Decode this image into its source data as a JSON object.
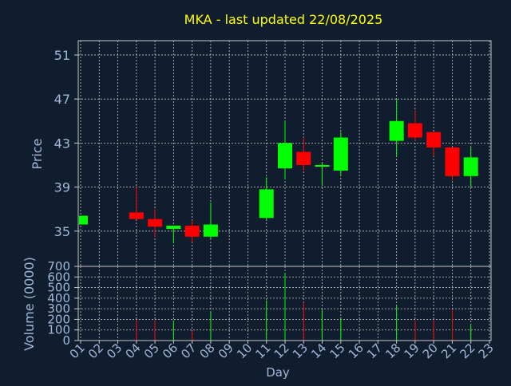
{
  "chart_data": {
    "type": "candlestick",
    "title": "MKA - last updated 22/08/2025",
    "colors": {
      "background": "#101d2e",
      "title": "#ffff00",
      "axis_text": "#a0b8d8",
      "grid": "#c8c8c8",
      "up": "#00ff00",
      "down": "#ff0000"
    },
    "price_panel": {
      "ylabel": "Price",
      "ylim": [
        31.8,
        52.3
      ],
      "yticks": [
        35,
        39,
        43,
        47,
        51
      ],
      "grid": true
    },
    "volume_panel": {
      "ylabel": "Volume (0000)",
      "ylim": [
        0,
        700
      ],
      "yticks": [
        0,
        100,
        200,
        300,
        400,
        500,
        600,
        700
      ],
      "grid": true
    },
    "xaxis": {
      "label": "Day",
      "ticks": [
        "01",
        "02",
        "03",
        "04",
        "05",
        "06",
        "07",
        "08",
        "09",
        "10",
        "11",
        "12",
        "13",
        "14",
        "15",
        "16",
        "17",
        "18",
        "19",
        "20",
        "21",
        "22",
        "23"
      ]
    },
    "candles": [
      {
        "day": 1,
        "open": 35.6,
        "close": 36.4,
        "high": 36.4,
        "low": 35.6,
        "volume": 0
      },
      {
        "day": 4,
        "open": 36.7,
        "close": 36.1,
        "high": 39.0,
        "low": 36.1,
        "volume": 190
      },
      {
        "day": 5,
        "open": 36.1,
        "close": 35.4,
        "high": 37.0,
        "low": 34.5,
        "volume": 190
      },
      {
        "day": 6,
        "open": 35.2,
        "close": 35.5,
        "high": 35.5,
        "low": 33.9,
        "volume": 190
      },
      {
        "day": 7,
        "open": 35.5,
        "close": 34.5,
        "high": 36.0,
        "low": 34.0,
        "volume": 90
      },
      {
        "day": 8,
        "open": 34.5,
        "close": 35.6,
        "high": 37.6,
        "low": 34.3,
        "volume": 270
      },
      {
        "day": 11,
        "open": 36.2,
        "close": 38.8,
        "high": 39.9,
        "low": 36.0,
        "volume": 380
      },
      {
        "day": 12,
        "open": 40.7,
        "close": 43.0,
        "high": 45.0,
        "low": 39.7,
        "volume": 640
      },
      {
        "day": 13,
        "open": 42.2,
        "close": 41.0,
        "high": 43.5,
        "low": 40.5,
        "volume": 360
      },
      {
        "day": 14,
        "open": 40.9,
        "close": 41.0,
        "high": 41.3,
        "low": 39.2,
        "volume": 300
      },
      {
        "day": 15,
        "open": 40.5,
        "close": 43.5,
        "high": 44.0,
        "low": 40.0,
        "volume": 210
      },
      {
        "day": 18,
        "open": 43.2,
        "close": 45.0,
        "high": 47.0,
        "low": 41.8,
        "volume": 330
      },
      {
        "day": 19,
        "open": 44.8,
        "close": 43.5,
        "high": 46.0,
        "low": 43.2,
        "volume": 190
      },
      {
        "day": 20,
        "open": 44.0,
        "close": 42.6,
        "high": 44.0,
        "low": 41.8,
        "volume": 190
      },
      {
        "day": 21,
        "open": 42.6,
        "close": 40.0,
        "high": 42.6,
        "low": 39.6,
        "volume": 290
      },
      {
        "day": 22,
        "open": 40.0,
        "close": 41.7,
        "high": 42.6,
        "low": 39.0,
        "volume": 150
      }
    ]
  }
}
